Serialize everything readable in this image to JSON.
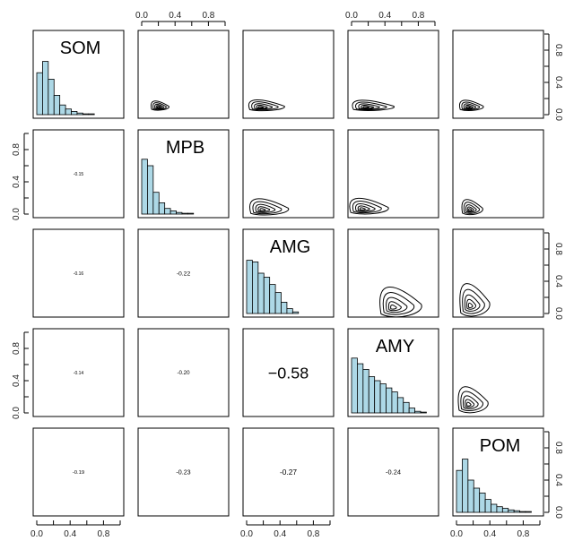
{
  "chart_data": {
    "type": "scatter-matrix",
    "variables": [
      "SOM",
      "MPB",
      "AMG",
      "AMY",
      "POM"
    ],
    "axis_range": [
      0,
      1
    ],
    "ticks": [
      "0.0",
      "0.4",
      "0.8"
    ],
    "tick_values": [
      0,
      0.4,
      0.8
    ],
    "histograms": {
      "SOM": [
        0.52,
        0.66,
        0.44,
        0.24,
        0.12,
        0.07,
        0.04,
        0.02,
        0.01,
        0.01
      ],
      "MPB": [
        0.68,
        0.6,
        0.27,
        0.14,
        0.07,
        0.04,
        0.02,
        0.01,
        0.01
      ],
      "AMG": [
        0.66,
        0.64,
        0.5,
        0.45,
        0.36,
        0.26,
        0.14,
        0.06,
        0.02
      ],
      "AMY": [
        0.68,
        0.61,
        0.54,
        0.45,
        0.4,
        0.36,
        0.31,
        0.26,
        0.19,
        0.13,
        0.06,
        0.02,
        0.01
      ],
      "POM": [
        0.52,
        0.66,
        0.4,
        0.3,
        0.24,
        0.16,
        0.1,
        0.07,
        0.05,
        0.03,
        0.02,
        0.01,
        0.01
      ]
    },
    "correlations": [
      {
        "row": "MPB",
        "col": "SOM",
        "text": "-0.15",
        "value": -0.15
      },
      {
        "row": "AMG",
        "col": "SOM",
        "text": "-0.16",
        "value": -0.16
      },
      {
        "row": "AMG",
        "col": "MPB",
        "text": "-0.22",
        "value": -0.22
      },
      {
        "row": "AMY",
        "col": "SOM",
        "text": "-0.14",
        "value": -0.14
      },
      {
        "row": "AMY",
        "col": "MPB",
        "text": "-0.20",
        "value": -0.2
      },
      {
        "row": "AMY",
        "col": "AMG",
        "text": "−0.58",
        "value": -0.58
      },
      {
        "row": "POM",
        "col": "SOM",
        "text": "-0.19",
        "value": -0.19
      },
      {
        "row": "POM",
        "col": "MPB",
        "text": "-0.23",
        "value": -0.23
      },
      {
        "row": "POM",
        "col": "AMG",
        "text": "-0.27",
        "value": -0.27
      },
      {
        "row": "POM",
        "col": "AMY",
        "text": "-0.24",
        "value": -0.24
      }
    ],
    "contours": [
      {
        "row": "SOM",
        "col": "MPB",
        "cx": 0.16,
        "cy": 0.09,
        "rx": 0.3,
        "ry": 0.17
      },
      {
        "row": "SOM",
        "col": "AMG",
        "cx": 0.12,
        "cy": 0.09,
        "rx": 0.6,
        "ry": 0.2
      },
      {
        "row": "SOM",
        "col": "AMY",
        "cx": 0.12,
        "cy": 0.09,
        "rx": 0.7,
        "ry": 0.19
      },
      {
        "row": "SOM",
        "col": "POM",
        "cx": 0.1,
        "cy": 0.09,
        "rx": 0.4,
        "ry": 0.19
      },
      {
        "row": "MPB",
        "col": "AMG",
        "cx": 0.14,
        "cy": 0.05,
        "rx": 0.65,
        "ry": 0.3
      },
      {
        "row": "MPB",
        "col": "AMY",
        "cx": 0.08,
        "cy": 0.06,
        "rx": 0.65,
        "ry": 0.29
      },
      {
        "row": "MPB",
        "col": "POM",
        "cx": 0.12,
        "cy": 0.05,
        "rx": 0.35,
        "ry": 0.28
      },
      {
        "row": "AMG",
        "col": "AMY",
        "cx": 0.45,
        "cy": 0.07,
        "rx": 0.7,
        "ry": 0.55
      },
      {
        "row": "AMG",
        "col": "POM",
        "cx": 0.12,
        "cy": 0.09,
        "rx": 0.5,
        "ry": 0.6
      },
      {
        "row": "AMY",
        "col": "POM",
        "cx": 0.1,
        "cy": 0.1,
        "rx": 0.5,
        "ry": 0.48
      }
    ],
    "colors": {
      "histogram_fill": "#add8e6",
      "line": "#000000"
    }
  }
}
